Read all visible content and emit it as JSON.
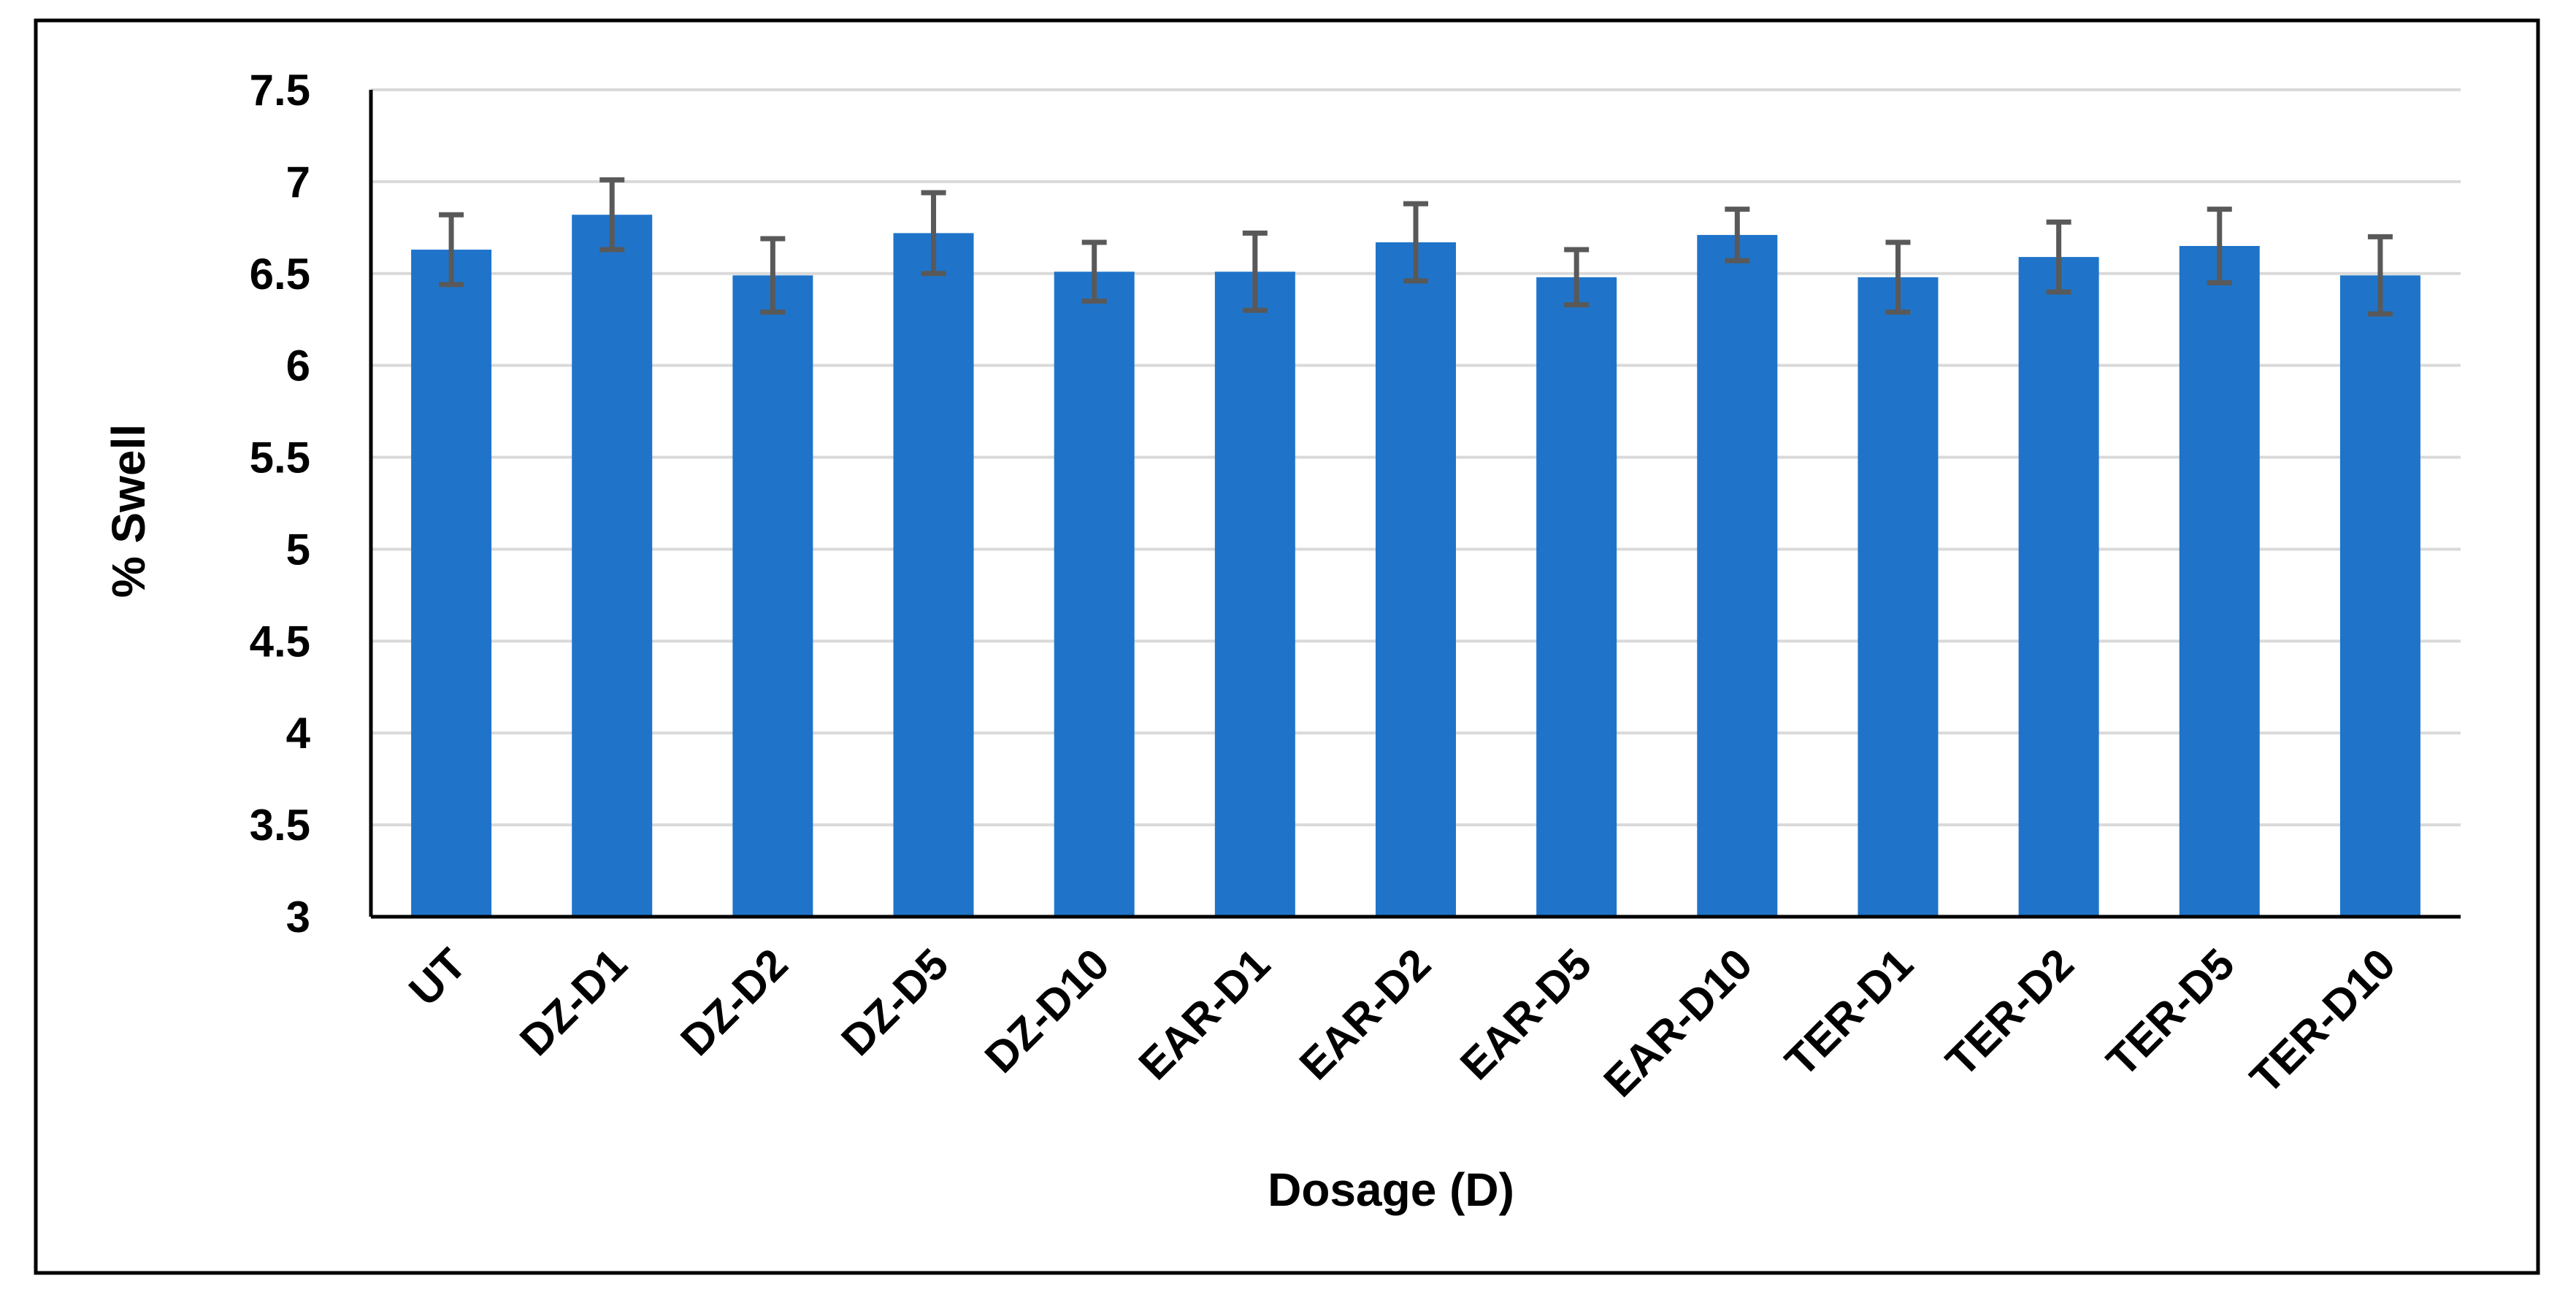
{
  "chart_data": {
    "type": "bar",
    "categories": [
      "UT",
      "DZ-D1",
      "DZ-D2",
      "DZ-D5",
      "DZ-D10",
      "EAR-D1",
      "EAR-D2",
      "EAR-D5",
      "EAR-D10",
      "TER-D1",
      "TER-D2",
      "TER-D5",
      "TER-D10"
    ],
    "series": [
      {
        "values": [
          6.63,
          6.82,
          6.49,
          6.72,
          6.51,
          6.51,
          6.67,
          6.48,
          6.71,
          6.48,
          6.59,
          6.65,
          6.49
        ],
        "errors": [
          0.19,
          0.19,
          0.2,
          0.22,
          0.16,
          0.21,
          0.21,
          0.15,
          0.14,
          0.19,
          0.19,
          0.2,
          0.21
        ]
      }
    ],
    "xlabel": "Dosage (D)",
    "ylabel": "% Swell",
    "ylim": [
      3,
      7.5
    ],
    "yticks": [
      3,
      3.5,
      4,
      4.5,
      5,
      5.5,
      6,
      6.5,
      7,
      7.5
    ],
    "ytick_labels": [
      "3",
      "3.5",
      "4",
      "4.5",
      "5",
      "5.5",
      "6",
      "6.5",
      "7",
      "7.5"
    ],
    "grid": true,
    "legend": "none",
    "colors": {
      "bar": "#1f74c9",
      "error_bar": "#595959",
      "grid": "#d9d9d9",
      "axis": "#000000",
      "frame": "#000000"
    }
  }
}
